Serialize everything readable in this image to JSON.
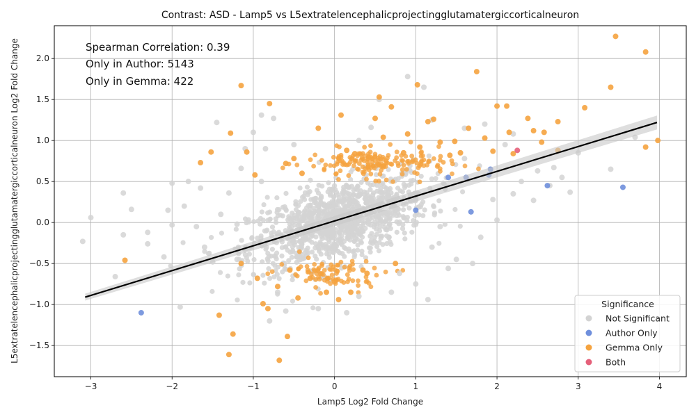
{
  "chart_data": {
    "type": "scatter",
    "title": "Contrast: ASD - Lamp5 vs L5extratelencephalicprojectingglutamatergiccorticalneuron",
    "xlabel": "Lamp5 Log2 Fold Change",
    "ylabel": "L5extratelencephalicprojectingglutamatergiccorticalneuron Log2 Fold Change",
    "xlim": [
      -3.45,
      4.33
    ],
    "ylim": [
      -1.88,
      2.4
    ],
    "xticks": [
      -3,
      -2,
      -1,
      0,
      1,
      2,
      3,
      4
    ],
    "xtick_labels": [
      "−3",
      "−2",
      "−1",
      "0",
      "1",
      "2",
      "3",
      "4"
    ],
    "yticks": [
      -1.5,
      -1.0,
      -0.5,
      0.0,
      0.5,
      1.0,
      1.5,
      2.0
    ],
    "ytick_labels": [
      "−1.5",
      "−1.0",
      "−0.5",
      "0.0",
      "0.5",
      "1.0",
      "1.5",
      "2.0"
    ],
    "grid": true,
    "annotations": [
      "Spearman Correlation: 0.39",
      "Only in Author: 5143",
      "Only in Gemma: 422"
    ],
    "legend": {
      "title": "Significance",
      "placement": "lower-right",
      "entries": [
        {
          "label": "Not Significant",
          "color": "#d3d3d3"
        },
        {
          "label": "Author Only",
          "color": "#6f8fdc"
        },
        {
          "label": "Gemma Only",
          "color": "#f5a33f"
        },
        {
          "label": "Both",
          "color": "#e5607a"
        }
      ]
    },
    "regression": {
      "x": [
        -3.07,
        3.97
      ],
      "y": [
        -0.91,
        1.22
      ],
      "color": "#000000"
    },
    "series": [
      {
        "name": "Not Significant",
        "color": "#d3d3d3",
        "points": [
          [
            -3.1,
            -0.23
          ],
          [
            -3.0,
            0.06
          ],
          [
            -2.7,
            -0.66
          ],
          [
            -2.6,
            0.36
          ],
          [
            -2.5,
            0.16
          ],
          [
            -2.3,
            -0.12
          ],
          [
            -2.3,
            -0.26
          ],
          [
            -2.1,
            -0.42
          ],
          [
            -2.05,
            0.15
          ],
          [
            -2.0,
            -0.03
          ],
          [
            -2.0,
            0.48
          ],
          [
            -1.9,
            -1.03
          ],
          [
            -1.85,
            0.2
          ],
          [
            -1.8,
            0.5
          ],
          [
            -1.7,
            -0.05
          ],
          [
            -1.65,
            0.42
          ],
          [
            -1.5,
            -0.48
          ],
          [
            -1.45,
            1.22
          ],
          [
            -1.3,
            0.36
          ],
          [
            -1.2,
            -0.02
          ],
          [
            -1.15,
            0.66
          ],
          [
            -1.1,
            0.9
          ],
          [
            -1.0,
            1.1
          ],
          [
            -0.9,
            1.31
          ],
          [
            -0.85,
            0.9
          ],
          [
            -0.8,
            -1.2
          ],
          [
            -0.75,
            1.27
          ],
          [
            -0.7,
            -0.85
          ],
          [
            -0.6,
            -1.08
          ],
          [
            -0.2,
            -1.05
          ],
          [
            0.15,
            -1.1
          ],
          [
            0.3,
            -0.9
          ],
          [
            0.45,
            1.16
          ],
          [
            0.55,
            1.5
          ],
          [
            0.7,
            -0.85
          ],
          [
            0.9,
            1.78
          ],
          [
            1.0,
            -0.75
          ],
          [
            1.1,
            1.65
          ],
          [
            1.15,
            -0.94
          ],
          [
            1.2,
            1.25
          ],
          [
            1.3,
            -0.05
          ],
          [
            1.4,
            -0.56
          ],
          [
            1.5,
            -0.45
          ],
          [
            1.6,
            1.15
          ],
          [
            1.7,
            -0.5
          ],
          [
            1.8,
            -0.18
          ],
          [
            1.85,
            1.2
          ],
          [
            1.95,
            0.28
          ],
          [
            2.0,
            0.03
          ],
          [
            2.1,
            0.95
          ],
          [
            2.2,
            1.08
          ],
          [
            2.3,
            0.5
          ],
          [
            2.45,
            0.27
          ],
          [
            2.5,
            0.63
          ],
          [
            2.65,
            0.45
          ],
          [
            2.7,
            0.67
          ],
          [
            2.8,
            0.55
          ],
          [
            2.9,
            0.37
          ],
          [
            3.0,
            0.85
          ],
          [
            3.4,
            0.65
          ],
          [
            3.7,
            1.04
          ],
          [
            -1.6,
            -0.3
          ],
          [
            -1.2,
            -0.45
          ],
          [
            -0.9,
            0.5
          ],
          [
            0.8,
            -0.62
          ],
          [
            1.6,
            0.78
          ],
          [
            -2.6,
            -0.15
          ],
          [
            -1.4,
            0.1
          ],
          [
            2.2,
            0.35
          ],
          [
            1.2,
            -0.3
          ],
          [
            -0.5,
            0.95
          ],
          [
            0.3,
            1.0
          ]
        ]
      },
      {
        "name": "Author Only",
        "color": "#6f8fdc",
        "points": [
          [
            -2.38,
            -1.1
          ],
          [
            1.68,
            0.13
          ],
          [
            1.9,
            0.58
          ],
          [
            1.92,
            0.65
          ],
          [
            2.62,
            0.45
          ],
          [
            3.55,
            0.43
          ],
          [
            1.4,
            0.55
          ],
          [
            1.62,
            0.55
          ],
          [
            1.0,
            0.15
          ]
        ]
      },
      {
        "name": "Gemma Only",
        "color": "#f5a33f",
        "points": [
          [
            -2.58,
            -0.46
          ],
          [
            -1.65,
            0.73
          ],
          [
            -1.52,
            0.86
          ],
          [
            -1.42,
            -1.13
          ],
          [
            -1.28,
            1.09
          ],
          [
            -1.25,
            -1.36
          ],
          [
            -1.3,
            -1.61
          ],
          [
            -1.15,
            1.67
          ],
          [
            -1.15,
            -0.5
          ],
          [
            -1.08,
            0.86
          ],
          [
            -0.98,
            0.58
          ],
          [
            -0.95,
            -0.68
          ],
          [
            -0.88,
            -0.99
          ],
          [
            -0.8,
            1.45
          ],
          [
            -0.82,
            -1.05
          ],
          [
            -0.68,
            -1.68
          ],
          [
            -0.58,
            -1.39
          ],
          [
            -0.5,
            0.78
          ],
          [
            -0.45,
            -0.92
          ],
          [
            -0.2,
            1.15
          ],
          [
            -0.1,
            -0.85
          ],
          [
            0.05,
            -0.94
          ],
          [
            0.08,
            1.31
          ],
          [
            0.2,
            -0.85
          ],
          [
            0.55,
            1.53
          ],
          [
            0.7,
            1.41
          ],
          [
            0.75,
            -0.5
          ],
          [
            0.85,
            0.85
          ],
          [
            1.02,
            1.68
          ],
          [
            1.15,
            1.23
          ],
          [
            1.22,
            1.26
          ],
          [
            1.48,
            0.99
          ],
          [
            1.65,
            1.15
          ],
          [
            1.75,
            1.84
          ],
          [
            1.85,
            1.03
          ],
          [
            2.0,
            1.42
          ],
          [
            2.12,
            1.42
          ],
          [
            2.15,
            1.1
          ],
          [
            2.38,
            1.27
          ],
          [
            2.45,
            1.12
          ],
          [
            2.55,
            0.98
          ],
          [
            2.58,
            1.1
          ],
          [
            2.75,
            1.23
          ],
          [
            2.75,
            0.88
          ],
          [
            3.08,
            1.4
          ],
          [
            3.4,
            1.65
          ],
          [
            3.46,
            2.27
          ],
          [
            3.83,
            2.08
          ],
          [
            3.83,
            0.92
          ],
          [
            3.98,
            1.0
          ],
          [
            -0.3,
            -0.68
          ],
          [
            0.4,
            -0.62
          ],
          [
            0.5,
            1.27
          ],
          [
            0.6,
            1.04
          ],
          [
            0.9,
            1.08
          ],
          [
            1.3,
            0.98
          ],
          [
            1.42,
            0.82
          ],
          [
            1.55,
            0.85
          ],
          [
            1.95,
            0.87
          ],
          [
            2.2,
            0.84
          ],
          [
            -0.6,
            0.72
          ],
          [
            -0.4,
            0.6
          ],
          [
            0.25,
            0.84
          ],
          [
            0.35,
            -0.58
          ],
          [
            0.0,
            -0.72
          ],
          [
            -0.55,
            -0.58
          ],
          [
            -0.7,
            -0.78
          ],
          [
            0.6,
            0.68
          ],
          [
            1.05,
            0.92
          ],
          [
            0.15,
            0.88
          ]
        ]
      },
      {
        "name": "Both",
        "color": "#e5607a",
        "points": [
          [
            2.25,
            0.88
          ]
        ]
      }
    ]
  }
}
